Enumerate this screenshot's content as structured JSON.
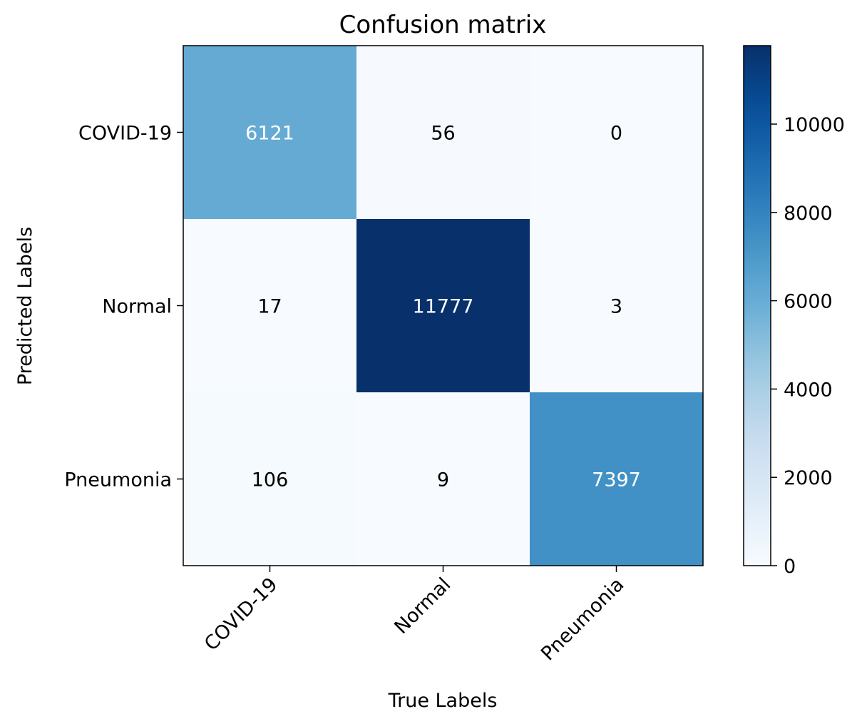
{
  "chart_data": {
    "type": "heatmap",
    "title": "Confusion matrix",
    "xlabel": "True Labels",
    "ylabel": "Predicted Labels",
    "x_categories": [
      "COVID-19",
      "Normal",
      "Pneumonia"
    ],
    "y_categories": [
      "COVID-19",
      "Normal",
      "Pneumonia"
    ],
    "values": [
      [
        6121,
        56,
        0
      ],
      [
        17,
        11777,
        3
      ],
      [
        106,
        9,
        7397
      ]
    ],
    "colormap": "Blues",
    "color_range": [
      0,
      11777
    ],
    "colorbar": {
      "ticks": [
        0,
        2000,
        4000,
        6000,
        8000,
        10000
      ],
      "tick_labels": [
        "0",
        "2000",
        "4000",
        "6000",
        "8000",
        "10000"
      ],
      "placement": "right"
    },
    "grid": false,
    "annotation_colors": {
      "light_text": "#ffffff",
      "dark_text": "#000000"
    },
    "frame_color": "#000000"
  }
}
